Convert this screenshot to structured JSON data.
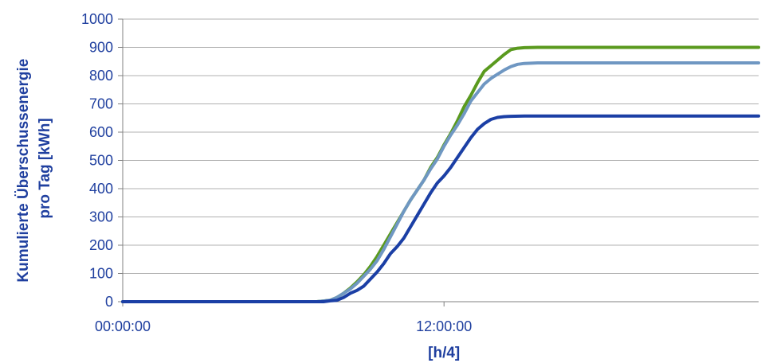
{
  "chart_data": {
    "type": "line",
    "xlabel": "[h/4]",
    "ylabel_lines": [
      "Kumulierte Überschussenergie",
      "pro Tag [kWh]"
    ],
    "ylim": [
      0,
      1000
    ],
    "yticks": [
      0,
      100,
      200,
      300,
      400,
      500,
      600,
      700,
      800,
      900,
      1000
    ],
    "xlim": [
      0,
      95
    ],
    "xticks": [
      {
        "x": 0,
        "label": "00:00:00"
      },
      {
        "x": 48,
        "label": "12:00:00"
      }
    ],
    "grid": true,
    "legend": "none",
    "series": [
      {
        "color": "#5a9a1e",
        "points": [
          [
            0,
            0
          ],
          [
            29,
            0
          ],
          [
            31,
            5
          ],
          [
            32,
            15
          ],
          [
            33,
            30
          ],
          [
            34,
            48
          ],
          [
            35,
            70
          ],
          [
            36,
            95
          ],
          [
            37,
            125
          ],
          [
            38,
            160
          ],
          [
            39,
            200
          ],
          [
            40,
            240
          ],
          [
            41,
            280
          ],
          [
            42,
            320
          ],
          [
            43,
            360
          ],
          [
            44,
            395
          ],
          [
            45,
            430
          ],
          [
            46,
            475
          ],
          [
            47,
            510
          ],
          [
            48,
            555
          ],
          [
            49,
            595
          ],
          [
            50,
            640
          ],
          [
            51,
            690
          ],
          [
            52,
            730
          ],
          [
            53,
            775
          ],
          [
            54,
            815
          ],
          [
            55,
            835
          ],
          [
            56,
            855
          ],
          [
            57,
            875
          ],
          [
            58,
            892
          ],
          [
            59,
            897
          ],
          [
            60,
            899
          ],
          [
            62,
            900
          ],
          [
            70,
            900
          ],
          [
            80,
            900
          ],
          [
            95,
            900
          ]
        ]
      },
      {
        "color": "#6f97c2",
        "points": [
          [
            0,
            0
          ],
          [
            29,
            0
          ],
          [
            31,
            5
          ],
          [
            32,
            15
          ],
          [
            33,
            30
          ],
          [
            34,
            45
          ],
          [
            35,
            65
          ],
          [
            36,
            90
          ],
          [
            37,
            115
          ],
          [
            38,
            145
          ],
          [
            39,
            185
          ],
          [
            40,
            230
          ],
          [
            41,
            275
          ],
          [
            42,
            320
          ],
          [
            43,
            360
          ],
          [
            44,
            395
          ],
          [
            45,
            430
          ],
          [
            46,
            470
          ],
          [
            47,
            505
          ],
          [
            48,
            550
          ],
          [
            49,
            590
          ],
          [
            50,
            625
          ],
          [
            51,
            665
          ],
          [
            52,
            710
          ],
          [
            53,
            740
          ],
          [
            54,
            770
          ],
          [
            55,
            790
          ],
          [
            56,
            805
          ],
          [
            57,
            820
          ],
          [
            58,
            832
          ],
          [
            59,
            840
          ],
          [
            60,
            843
          ],
          [
            62,
            845
          ],
          [
            70,
            845
          ],
          [
            80,
            845
          ],
          [
            95,
            845
          ]
        ]
      },
      {
        "color": "#1b3fa5",
        "points": [
          [
            0,
            0
          ],
          [
            30,
            0
          ],
          [
            31,
            3
          ],
          [
            32,
            5
          ],
          [
            33,
            15
          ],
          [
            34,
            30
          ],
          [
            35,
            40
          ],
          [
            36,
            55
          ],
          [
            37,
            80
          ],
          [
            38,
            105
          ],
          [
            39,
            135
          ],
          [
            40,
            170
          ],
          [
            41,
            195
          ],
          [
            42,
            225
          ],
          [
            43,
            265
          ],
          [
            44,
            305
          ],
          [
            45,
            345
          ],
          [
            46,
            385
          ],
          [
            47,
            420
          ],
          [
            48,
            445
          ],
          [
            49,
            475
          ],
          [
            50,
            510
          ],
          [
            51,
            545
          ],
          [
            52,
            580
          ],
          [
            53,
            610
          ],
          [
            54,
            630
          ],
          [
            55,
            645
          ],
          [
            56,
            652
          ],
          [
            57,
            655
          ],
          [
            58,
            656
          ],
          [
            60,
            657
          ],
          [
            70,
            657
          ],
          [
            80,
            657
          ],
          [
            95,
            657
          ]
        ]
      }
    ]
  }
}
